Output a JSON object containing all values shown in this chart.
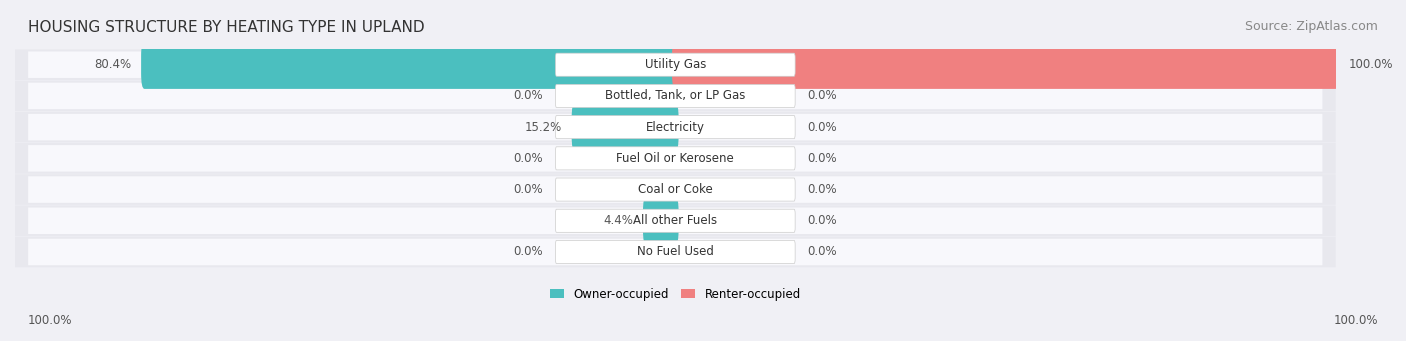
{
  "title": "HOUSING STRUCTURE BY HEATING TYPE IN UPLAND",
  "source": "Source: ZipAtlas.com",
  "categories": [
    "Utility Gas",
    "Bottled, Tank, or LP Gas",
    "Electricity",
    "Fuel Oil or Kerosene",
    "Coal or Coke",
    "All other Fuels",
    "No Fuel Used"
  ],
  "owner_values": [
    80.4,
    0.0,
    15.2,
    0.0,
    0.0,
    4.4,
    0.0
  ],
  "renter_values": [
    100.0,
    0.0,
    0.0,
    0.0,
    0.0,
    0.0,
    0.0
  ],
  "owner_color": "#4bbfbf",
  "renter_color": "#f08080",
  "owner_label": "Owner-occupied",
  "renter_label": "Renter-occupied",
  "background_color": "#f0f0f5",
  "bar_background_color": "#ffffff",
  "row_bg_color": "#e8e8f0",
  "axis_label_left": "100.0%",
  "axis_label_right": "100.0%",
  "title_fontsize": 11,
  "source_fontsize": 9,
  "label_fontsize": 8.5,
  "category_fontsize": 8.5,
  "max_value": 100.0
}
